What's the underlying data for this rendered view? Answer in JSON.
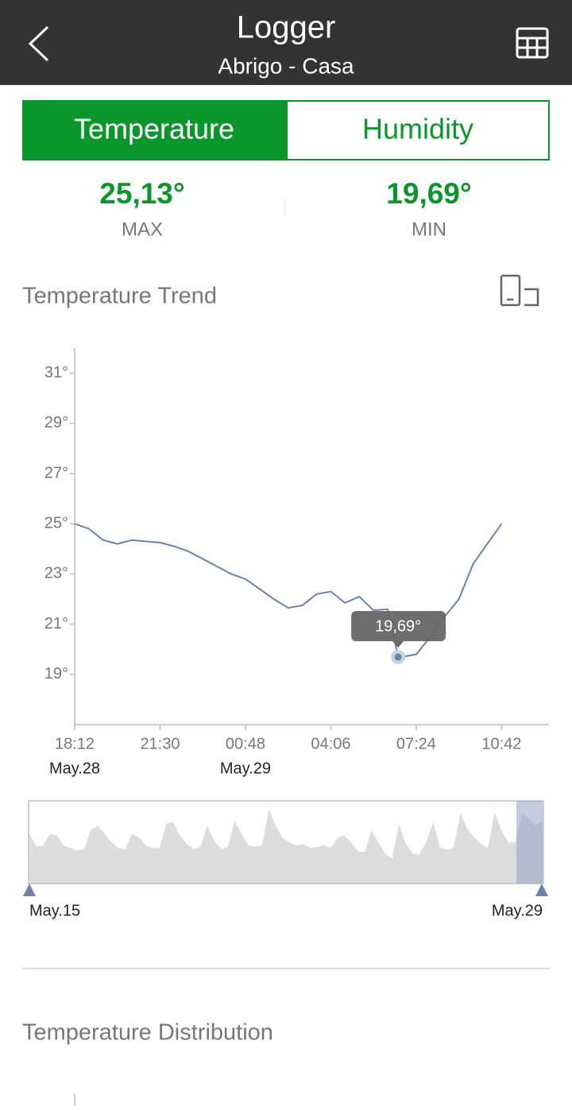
{
  "header": {
    "title": "Logger",
    "subtitle": "Abrigo - Casa"
  },
  "tabs": [
    "Temperature",
    "Humidity"
  ],
  "stats": [
    {
      "value": "25,13°",
      "label": "MAX"
    },
    {
      "value": "19,69°",
      "label": "MIN"
    }
  ],
  "trend": {
    "title": "Temperature Trend"
  },
  "chart_data": {
    "type": "line",
    "color": "#6a84a8",
    "x": [
      "18:12",
      "18:45",
      "19:18",
      "19:51",
      "20:24",
      "20:57",
      "21:30",
      "22:03",
      "22:36",
      "23:09",
      "23:42",
      "00:15",
      "00:48",
      "01:21",
      "01:54",
      "02:27",
      "03:00",
      "03:33",
      "04:06",
      "04:39",
      "05:12",
      "05:45",
      "06:18",
      "06:42",
      "06:51",
      "07:24",
      "07:57",
      "08:30",
      "09:03",
      "09:36",
      "10:09",
      "10:42"
    ],
    "values": [
      25.0,
      24.8,
      24.35,
      24.2,
      24.35,
      24.3,
      24.25,
      24.1,
      23.9,
      23.6,
      23.3,
      23.0,
      22.8,
      22.4,
      22.0,
      21.65,
      21.75,
      22.2,
      22.3,
      21.85,
      22.1,
      21.55,
      21.6,
      19.69,
      19.7,
      19.8,
      20.5,
      21.3,
      22.0,
      23.4,
      24.2,
      25.0
    ],
    "xlim": [
      "18:12",
      "12:30"
    ],
    "xticks": [
      "18:12",
      "21:30",
      "00:48",
      "04:06",
      "07:24",
      "10:42"
    ],
    "xtick_dates": [
      "May.28",
      null,
      "May.29",
      null,
      null,
      null
    ],
    "ylim": [
      17,
      32
    ],
    "yticks": [
      {
        "value": 19,
        "label": "19°"
      },
      {
        "value": 21,
        "label": "21°"
      },
      {
        "value": 23,
        "label": "23°"
      },
      {
        "value": 25,
        "label": "25°"
      },
      {
        "value": 27,
        "label": "27°"
      },
      {
        "value": 29,
        "label": "29°"
      },
      {
        "value": 31,
        "label": "31°"
      }
    ],
    "annotation": {
      "text": "19,69°",
      "x": "06:42",
      "y": 19.69
    }
  },
  "navigator": {
    "values": [
      23,
      21.5,
      21.6,
      23,
      22.8,
      21.6,
      21.3,
      21,
      21.2,
      23.5,
      24,
      23,
      22,
      21.3,
      21.2,
      23,
      22.6,
      21.6,
      21.3,
      21.3,
      24.2,
      24.5,
      22.8,
      21.8,
      21.2,
      21.4,
      24,
      22.2,
      21.2,
      21.4,
      24.6,
      23,
      21.6,
      21.5,
      21.6,
      26,
      24,
      22.5,
      22,
      21.6,
      21.8,
      21.3,
      21.4,
      21.7,
      21.3,
      22.5,
      22.8,
      22,
      20.9,
      20.8,
      23.4,
      22,
      20.6,
      20,
      24.2,
      21.8,
      20.7,
      20.5,
      22,
      24.4,
      21.4,
      21.1,
      21.4,
      25.5,
      23.6,
      22.6,
      21.8,
      21.3,
      25.6,
      23.4,
      22,
      22,
      25.5,
      24.8,
      24,
      24.6
    ],
    "ylim": [
      17,
      27
    ],
    "start": "May.15",
    "end": "May.29"
  },
  "distribution": {
    "title": "Temperature Distribution"
  }
}
